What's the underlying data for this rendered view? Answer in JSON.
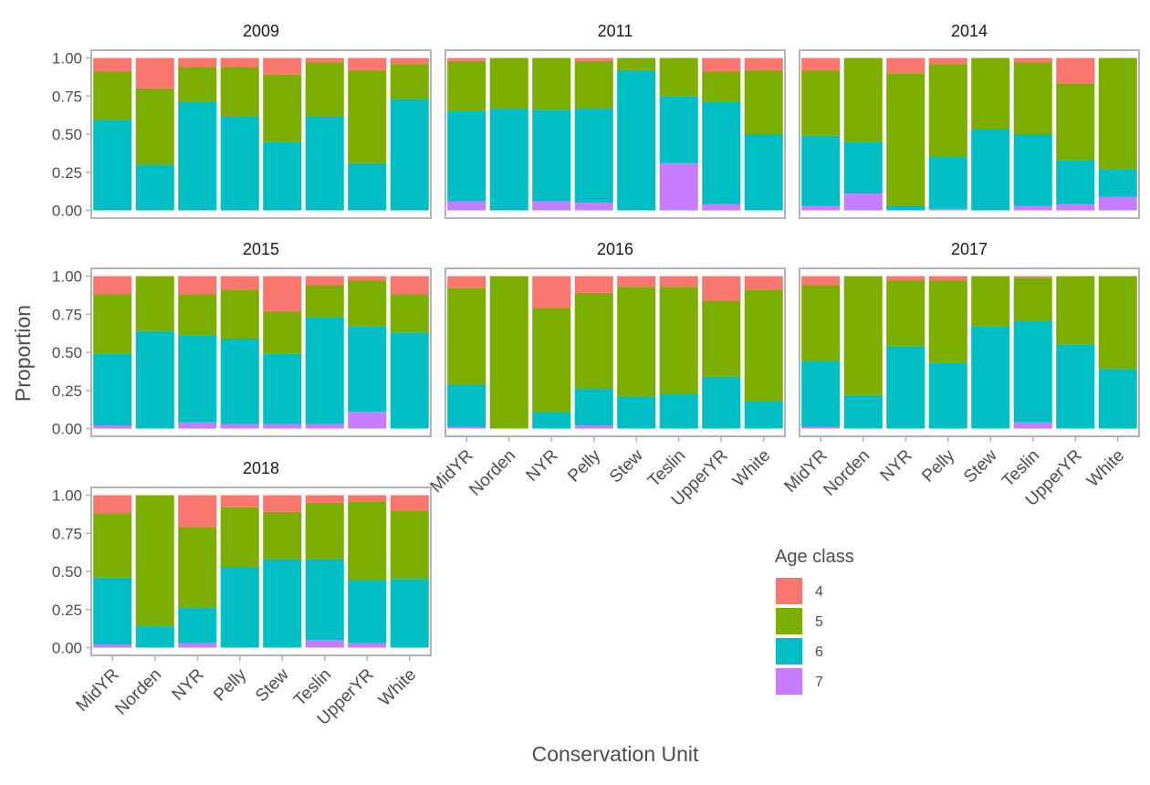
{
  "chart_data": {
    "type": "bar",
    "stacked": true,
    "facet_variable": "year",
    "xlabel": "Conservation Unit",
    "ylabel": "Proportion",
    "ylim": [
      0,
      1
    ],
    "y_ticks": [
      "0.00",
      "0.25",
      "0.50",
      "0.75",
      "1.00"
    ],
    "categories": [
      "MidYR",
      "Norden",
      "NYR",
      "Pelly",
      "Stew",
      "Teslin",
      "UpperYR",
      "White"
    ],
    "legend": {
      "title": "Age class",
      "position": "bottom-right",
      "entries": [
        {
          "label": "4",
          "color": "#F8766D"
        },
        {
          "label": "5",
          "color": "#7CAE00"
        },
        {
          "label": "6",
          "color": "#00BFC4"
        },
        {
          "label": "7",
          "color": "#C77CFF"
        }
      ]
    },
    "stack_order_bottom_to_top": [
      "7",
      "6",
      "5",
      "4"
    ],
    "panels": [
      {
        "title": "2009",
        "series": [
          {
            "name": "4",
            "values": [
              0.09,
              0.2,
              0.06,
              0.06,
              0.11,
              0.03,
              0.08,
              0.04
            ]
          },
          {
            "name": "5",
            "values": [
              0.32,
              0.5,
              0.23,
              0.32,
              0.44,
              0.35,
              0.61,
              0.23
            ]
          },
          {
            "name": "6",
            "values": [
              0.59,
              0.3,
              0.71,
              0.62,
              0.45,
              0.62,
              0.31,
              0.73
            ]
          },
          {
            "name": "7",
            "values": [
              0,
              0,
              0,
              0,
              0,
              0,
              0,
              0
            ]
          }
        ]
      },
      {
        "title": "2011",
        "series": [
          {
            "name": "4",
            "values": [
              0.02,
              0,
              0,
              0.02,
              0,
              0,
              0.09,
              0.08
            ]
          },
          {
            "name": "5",
            "values": [
              0.33,
              0.33,
              0.34,
              0.31,
              0.08,
              0.25,
              0.2,
              0.42
            ]
          },
          {
            "name": "6",
            "values": [
              0.59,
              0.67,
              0.6,
              0.62,
              0.92,
              0.44,
              0.67,
              0.5
            ]
          },
          {
            "name": "7",
            "values": [
              0.06,
              0,
              0.06,
              0.05,
              0,
              0.31,
              0.04,
              0
            ]
          }
        ]
      },
      {
        "title": "2014",
        "series": [
          {
            "name": "4",
            "values": [
              0.08,
              0,
              0.1,
              0.04,
              0,
              0.03,
              0.17,
              0
            ]
          },
          {
            "name": "5",
            "values": [
              0.43,
              0.55,
              0.87,
              0.61,
              0.47,
              0.47,
              0.5,
              0.73
            ]
          },
          {
            "name": "6",
            "values": [
              0.46,
              0.34,
              0.03,
              0.34,
              0.53,
              0.47,
              0.29,
              0.18
            ]
          },
          {
            "name": "7",
            "values": [
              0.03,
              0.11,
              0,
              0.01,
              0,
              0.03,
              0.04,
              0.09
            ]
          }
        ]
      },
      {
        "title": "2015",
        "series": [
          {
            "name": "4",
            "values": [
              0.12,
              0,
              0.12,
              0.09,
              0.23,
              0.06,
              0.03,
              0.12
            ]
          },
          {
            "name": "5",
            "values": [
              0.39,
              0.36,
              0.27,
              0.32,
              0.28,
              0.21,
              0.3,
              0.25
            ]
          },
          {
            "name": "6",
            "values": [
              0.47,
              0.64,
              0.57,
              0.56,
              0.46,
              0.7,
              0.56,
              0.63
            ]
          },
          {
            "name": "7",
            "values": [
              0.02,
              0,
              0.04,
              0.03,
              0.03,
              0.03,
              0.11,
              0
            ]
          }
        ]
      },
      {
        "title": "2016",
        "series": [
          {
            "name": "4",
            "values": [
              0.08,
              0,
              0.21,
              0.11,
              0.07,
              0.07,
              0.16,
              0.09
            ]
          },
          {
            "name": "5",
            "values": [
              0.63,
              1.0,
              0.68,
              0.63,
              0.72,
              0.7,
              0.5,
              0.73
            ]
          },
          {
            "name": "6",
            "values": [
              0.28,
              0,
              0.11,
              0.24,
              0.21,
              0.23,
              0.34,
              0.18
            ]
          },
          {
            "name": "7",
            "values": [
              0.01,
              0,
              0,
              0.02,
              0,
              0,
              0,
              0
            ]
          }
        ]
      },
      {
        "title": "2017",
        "series": [
          {
            "name": "4",
            "values": [
              0.06,
              0,
              0.03,
              0.03,
              0,
              0.01,
              0,
              0
            ]
          },
          {
            "name": "5",
            "values": [
              0.5,
              0.78,
              0.43,
              0.54,
              0.33,
              0.28,
              0.45,
              0.61
            ]
          },
          {
            "name": "6",
            "values": [
              0.43,
              0.22,
              0.54,
              0.43,
              0.67,
              0.67,
              0.55,
              0.39
            ]
          },
          {
            "name": "7",
            "values": [
              0.01,
              0,
              0,
              0,
              0,
              0.04,
              0,
              0
            ]
          }
        ]
      },
      {
        "title": "2018",
        "series": [
          {
            "name": "4",
            "values": [
              0.12,
              0,
              0.21,
              0.08,
              0.11,
              0.05,
              0.04,
              0.1
            ]
          },
          {
            "name": "5",
            "values": [
              0.42,
              0.86,
              0.53,
              0.39,
              0.31,
              0.37,
              0.52,
              0.45
            ]
          },
          {
            "name": "6",
            "values": [
              0.44,
              0.14,
              0.23,
              0.53,
              0.58,
              0.53,
              0.41,
              0.45
            ]
          },
          {
            "name": "7",
            "values": [
              0.02,
              0,
              0.03,
              0,
              0,
              0.05,
              0.03,
              0
            ]
          }
        ]
      }
    ]
  }
}
